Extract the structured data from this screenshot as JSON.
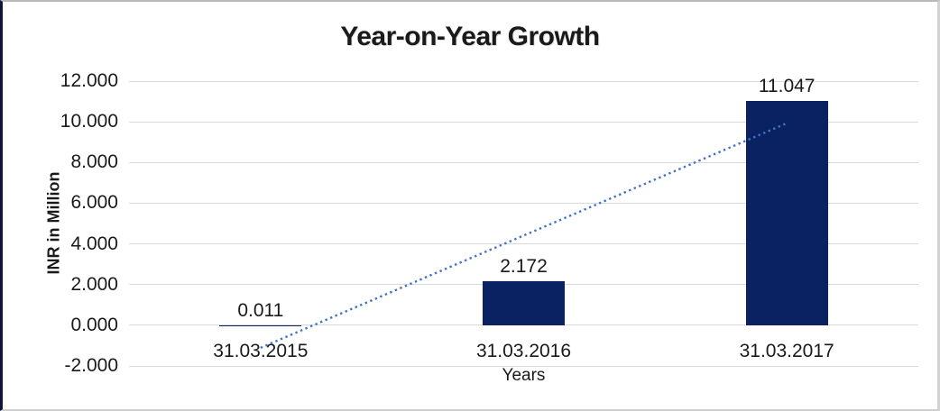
{
  "chart_data": {
    "type": "bar",
    "title": "Year-on-Year Growth",
    "xlabel": "Years",
    "ylabel": "INR in Million",
    "categories": [
      "31.03.2015",
      "31.03.2016",
      "31.03.2017"
    ],
    "values": [
      0.011,
      2.172,
      11.047
    ],
    "data_labels": [
      "0.011",
      "2.172",
      "11.047"
    ],
    "y_ticks": [
      {
        "value": 12,
        "label": "12.000"
      },
      {
        "value": 10,
        "label": "10.000"
      },
      {
        "value": 8,
        "label": "8.000"
      },
      {
        "value": 6,
        "label": "6.000"
      },
      {
        "value": 4,
        "label": "4.000"
      },
      {
        "value": 2,
        "label": "2.000"
      },
      {
        "value": 0,
        "label": "0.000"
      },
      {
        "value": -2,
        "label": "-2.000"
      }
    ],
    "ylim": [
      -2,
      12
    ],
    "grid": true,
    "legend": "none",
    "colors": {
      "bar": "#0a2262",
      "trendline": "#4472c4",
      "gridline": "#d9d9d9",
      "text": "#1a1a1a"
    },
    "trendline": {
      "type": "linear",
      "style": "dotted",
      "start_value": -1.108,
      "end_value": 9.928
    }
  }
}
